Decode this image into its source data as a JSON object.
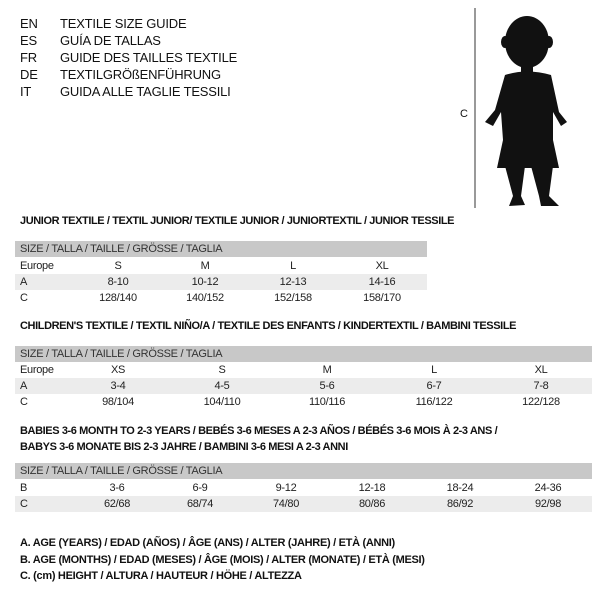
{
  "languages": [
    {
      "code": "EN",
      "text": "TEXTILE SIZE GUIDE"
    },
    {
      "code": "ES",
      "text": "GUÍA DE TALLAS"
    },
    {
      "code": "FR",
      "text": "GUIDE DES TAILLES TEXTILE"
    },
    {
      "code": "DE",
      "text": "TEXTILGRÖßENFÜHRUNG"
    },
    {
      "code": "IT",
      "text": "GUIDA ALLE TAGLIE TESSILI"
    }
  ],
  "figure": {
    "measure_label": "C"
  },
  "size_header": "SIZE / TALLA / TAILLE / GRÖSSE / TAGLIA",
  "junior": {
    "title": "JUNIOR TEXTILE / TEXTIL JUNIOR/ TEXTILE JUNIOR / JUNIORTEXTIL / JUNIOR TESSILE",
    "rows": [
      {
        "label": "Europe",
        "cells": [
          "S",
          "M",
          "L",
          "XL"
        ]
      },
      {
        "label": "A",
        "cells": [
          "8-10",
          "10-12",
          "12-13",
          "14-16"
        ]
      },
      {
        "label": "C",
        "cells": [
          "128/140",
          "140/152",
          "152/158",
          "158/170"
        ]
      }
    ]
  },
  "children": {
    "title": "CHILDREN'S TEXTILE / TEXTIL NIÑO/A / TEXTILE DES ENFANTS / KINDERTEXTIL / BAMBINI TESSILE",
    "rows": [
      {
        "label": "Europe",
        "cells": [
          "XS",
          "S",
          "M",
          "L",
          "XL"
        ]
      },
      {
        "label": "A",
        "cells": [
          "3-4",
          "4-5",
          "5-6",
          "6-7",
          "7-8"
        ]
      },
      {
        "label": "C",
        "cells": [
          "98/104",
          "104/110",
          "110/116",
          "116/122",
          "122/128"
        ]
      }
    ]
  },
  "babies": {
    "title_line1": "BABIES 3-6 MONTH TO 2-3 YEARS / BEBÉS 3-6 MESES A 2-3 AÑOS / BÉBÉS 3-6 MOIS À 2-3 ANS /",
    "title_line2": "BABYS 3-6 MONATE BIS 2-3 JAHRE / BAMBINI 3-6 MESI A 2-3 ANNI",
    "rows": [
      {
        "label": "B",
        "cells": [
          "3-6",
          "6-9",
          "9-12",
          "12-18",
          "18-24",
          "24-36"
        ]
      },
      {
        "label": "C",
        "cells": [
          "62/68",
          "68/74",
          "74/80",
          "80/86",
          "86/92",
          "92/98"
        ]
      }
    ]
  },
  "legend": [
    "A. AGE (YEARS) / EDAD (AÑOS) / ÂGE (ANS) / ALTER (JAHRE) / ETÀ (ANNI)",
    "B. AGE (MONTHS) / EDAD (MESES) / ÂGE (MOIS) / ALTER (MONATE) / ETÀ (MESI)",
    "C. (cm) HEIGHT / ALTURA / HAUTEUR / HÖHE / ALTEZZA"
  ]
}
